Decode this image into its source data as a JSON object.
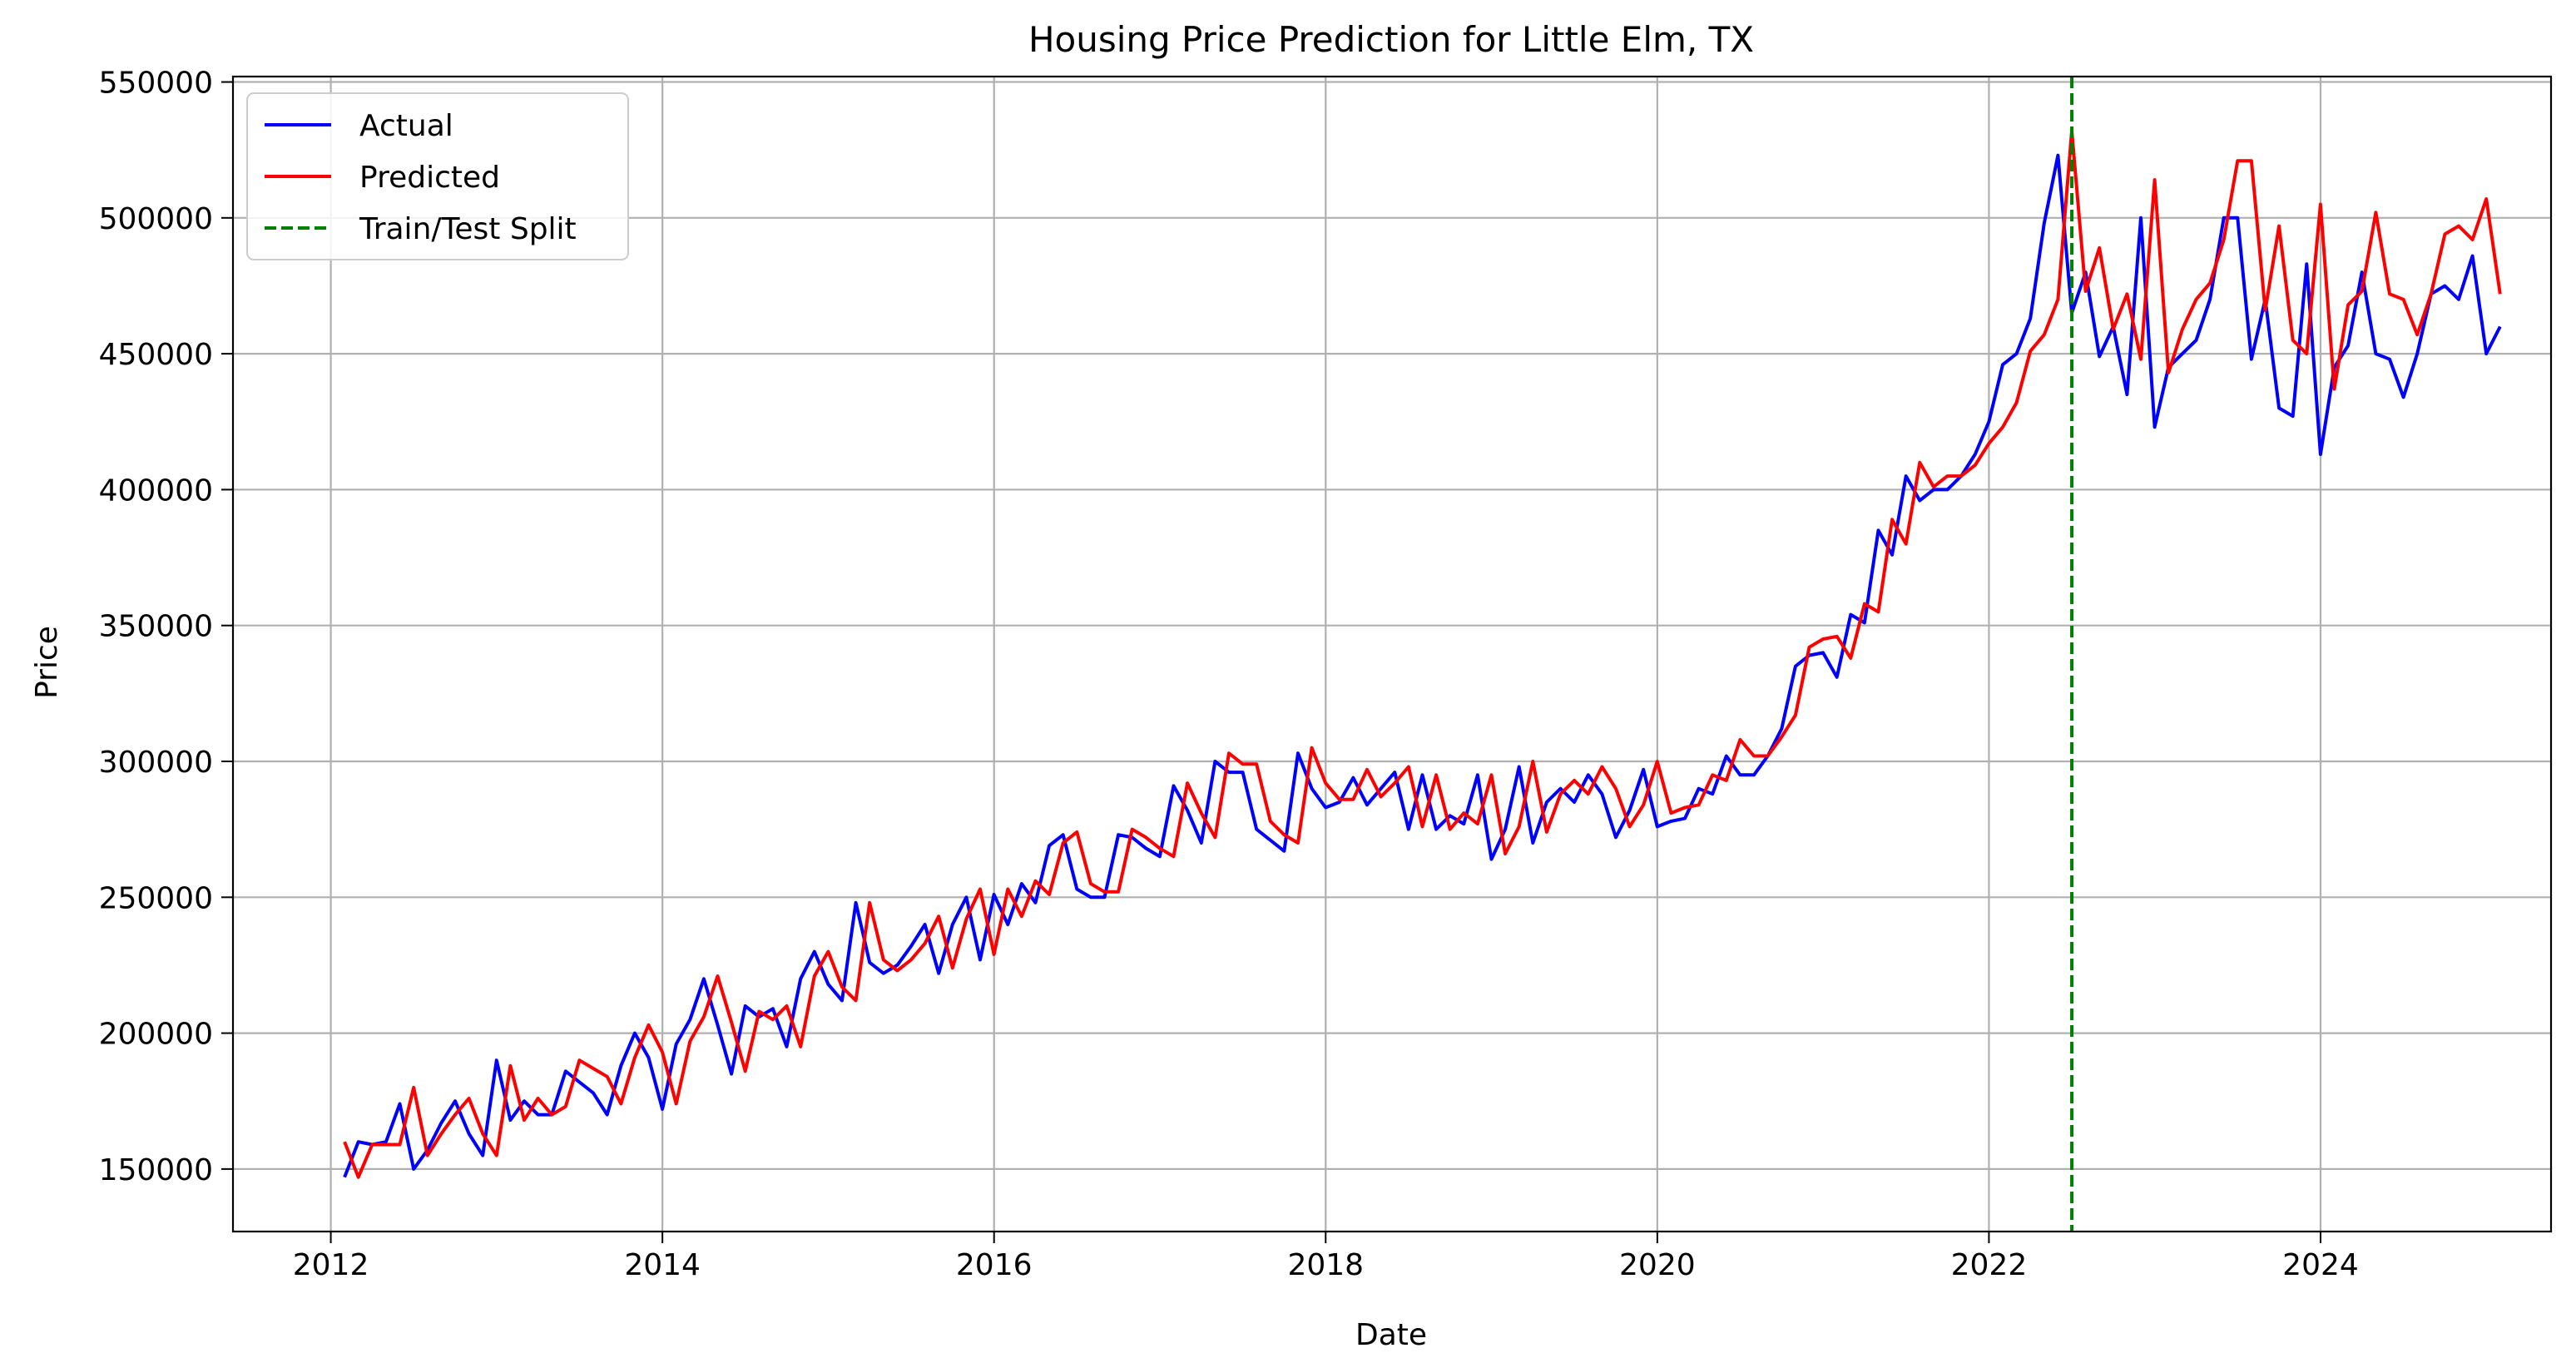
{
  "chart_data": {
    "type": "line",
    "title": "Housing Price Prediction for Little Elm, TX",
    "xlabel": "Date",
    "ylabel": "Price",
    "xlim": [
      2011.41,
      2025.39
    ],
    "ylim": [
      127000,
      552000
    ],
    "x_ticks": [
      2012,
      2014,
      2016,
      2018,
      2020,
      2022,
      2024
    ],
    "x_tick_labels": [
      "2012",
      "2014",
      "2016",
      "2018",
      "2020",
      "2022",
      "2024"
    ],
    "y_ticks": [
      150000,
      200000,
      250000,
      300000,
      350000,
      400000,
      450000,
      500000,
      550000
    ],
    "y_tick_labels": [
      "150000",
      "200000",
      "250000",
      "300000",
      "350000",
      "400000",
      "450000",
      "500000",
      "550000"
    ],
    "grid": true,
    "legend_position": "top-left",
    "x_start": 2012.083,
    "x_step": 0.0833333,
    "train_test_split_x": 2022.5,
    "series": [
      {
        "name": "Actual",
        "color": "#0000ff",
        "style": "solid",
        "values": [
          147000,
          160000,
          159000,
          160000,
          174000,
          150000,
          157000,
          167000,
          175000,
          163000,
          155000,
          190000,
          168000,
          175000,
          170000,
          170000,
          186000,
          182000,
          178000,
          170000,
          188000,
          200000,
          191000,
          172000,
          196000,
          205000,
          220000,
          203000,
          185000,
          210000,
          206000,
          209000,
          195000,
          220000,
          230000,
          218000,
          212000,
          248000,
          226000,
          222000,
          225000,
          232000,
          240000,
          222000,
          240000,
          250000,
          227000,
          251000,
          240000,
          255000,
          248000,
          269000,
          273000,
          253000,
          250000,
          250000,
          273000,
          272000,
          268000,
          265000,
          291000,
          282000,
          270000,
          300000,
          296000,
          296000,
          275000,
          271000,
          267000,
          303000,
          290000,
          283000,
          285000,
          294000,
          284000,
          290000,
          296000,
          275000,
          295000,
          275000,
          280000,
          277000,
          295000,
          264000,
          275000,
          298000,
          270000,
          285000,
          290000,
          285000,
          295000,
          288000,
          272000,
          282000,
          297000,
          276000,
          278000,
          279000,
          290000,
          288000,
          302000,
          295000,
          295000,
          302000,
          312000,
          335000,
          339000,
          340000,
          331000,
          354000,
          351000,
          385000,
          376000,
          405000,
          396000,
          400000,
          400000,
          405000,
          413000,
          425000,
          446000,
          450000,
          463000,
          498000,
          523000,
          465000,
          480000,
          449000,
          460000,
          435000,
          500000,
          423000,
          445000,
          450000,
          455000,
          470000,
          500000,
          500000,
          448000,
          470000,
          430000,
          427000,
          483000,
          413000,
          445000,
          453000,
          480000,
          450000,
          448000,
          434000,
          450000,
          472000,
          475000,
          470000,
          486000,
          450000,
          460000
        ]
      },
      {
        "name": "Predicted",
        "color": "#ff0000",
        "style": "solid",
        "values": [
          160000,
          147000,
          159000,
          159000,
          159000,
          180000,
          155000,
          163000,
          170000,
          176000,
          163000,
          155000,
          188000,
          168000,
          176000,
          170000,
          173000,
          190000,
          187000,
          184000,
          174000,
          191000,
          203000,
          193000,
          174000,
          197000,
          206000,
          221000,
          204000,
          186000,
          208000,
          205000,
          210000,
          195000,
          221000,
          230000,
          217000,
          212000,
          248000,
          227000,
          223000,
          227000,
          233000,
          243000,
          224000,
          242000,
          253000,
          229000,
          253000,
          243000,
          256000,
          251000,
          270000,
          274000,
          255000,
          252000,
          252000,
          275000,
          272000,
          268000,
          265000,
          292000,
          281000,
          272000,
          303000,
          299000,
          299000,
          278000,
          273000,
          270000,
          305000,
          292000,
          286000,
          286000,
          297000,
          287000,
          292000,
          298000,
          276000,
          295000,
          275000,
          281000,
          277000,
          295000,
          266000,
          276000,
          300000,
          274000,
          288000,
          293000,
          288000,
          298000,
          290000,
          276000,
          284000,
          300000,
          281000,
          283000,
          284000,
          295000,
          293000,
          308000,
          302000,
          302000,
          309000,
          317000,
          342000,
          345000,
          346000,
          338000,
          358000,
          355000,
          389000,
          380000,
          410000,
          401000,
          405000,
          405000,
          409000,
          417000,
          423000,
          432000,
          451000,
          457000,
          470000,
          532000,
          473000,
          489000,
          459000,
          472000,
          448000,
          514000,
          443000,
          459000,
          470000,
          476000,
          492000,
          521000,
          521000,
          466000,
          497000,
          455000,
          450000,
          505000,
          437000,
          468000,
          473000,
          502000,
          472000,
          470000,
          457000,
          472000,
          494000,
          497000,
          492000,
          507000,
          472000
        ]
      },
      {
        "name": "Train/Test Split",
        "color": "#008000",
        "style": "dashed"
      }
    ]
  }
}
